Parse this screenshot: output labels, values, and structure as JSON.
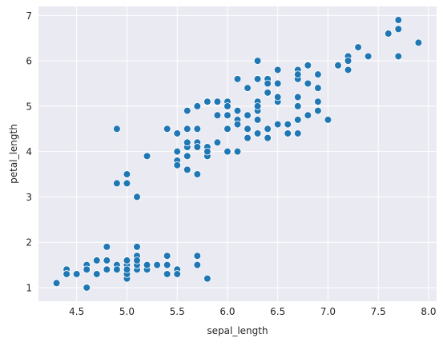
{
  "chart_data": {
    "type": "scatter",
    "title": "",
    "xlabel": "sepal_length",
    "ylabel": "petal_length",
    "xlim": [
      4.12,
      8.08
    ],
    "ylim": [
      0.7,
      7.2
    ],
    "xticks": [
      4.5,
      5.0,
      5.5,
      6.0,
      6.5,
      7.0,
      7.5,
      8.0
    ],
    "xtick_labels": [
      "4.5",
      "5.0",
      "5.5",
      "6.0",
      "6.5",
      "7.0",
      "7.5",
      "8.0"
    ],
    "yticks": [
      1,
      2,
      3,
      4,
      5,
      6,
      7
    ],
    "ytick_labels": [
      "1",
      "2",
      "3",
      "4",
      "5",
      "6",
      "7"
    ],
    "grid": true,
    "background_color": "#eaeaf2",
    "grid_color": "#ffffff",
    "marker_color": "#1f77b4",
    "points": [
      [
        5.1,
        1.4
      ],
      [
        4.9,
        1.4
      ],
      [
        4.7,
        1.3
      ],
      [
        4.6,
        1.5
      ],
      [
        5.0,
        1.4
      ],
      [
        5.4,
        1.7
      ],
      [
        4.6,
        1.4
      ],
      [
        5.0,
        1.5
      ],
      [
        4.4,
        1.4
      ],
      [
        4.9,
        1.5
      ],
      [
        5.4,
        1.5
      ],
      [
        4.8,
        1.6
      ],
      [
        4.8,
        1.4
      ],
      [
        4.3,
        1.1
      ],
      [
        5.8,
        1.2
      ],
      [
        5.7,
        1.5
      ],
      [
        5.4,
        1.3
      ],
      [
        5.1,
        1.4
      ],
      [
        5.7,
        1.7
      ],
      [
        5.1,
        1.5
      ],
      [
        5.4,
        1.7
      ],
      [
        5.1,
        1.5
      ],
      [
        4.6,
        1.0
      ],
      [
        5.1,
        1.7
      ],
      [
        4.8,
        1.9
      ],
      [
        5.0,
        1.6
      ],
      [
        5.0,
        1.6
      ],
      [
        5.2,
        1.5
      ],
      [
        5.2,
        1.4
      ],
      [
        4.7,
        1.6
      ],
      [
        4.8,
        1.6
      ],
      [
        5.4,
        1.5
      ],
      [
        5.2,
        1.5
      ],
      [
        5.5,
        1.4
      ],
      [
        4.9,
        1.5
      ],
      [
        5.0,
        1.2
      ],
      [
        5.5,
        1.3
      ],
      [
        4.9,
        1.4
      ],
      [
        4.4,
        1.3
      ],
      [
        5.1,
        1.5
      ],
      [
        5.0,
        1.3
      ],
      [
        4.5,
        1.3
      ],
      [
        4.4,
        1.3
      ],
      [
        5.0,
        1.6
      ],
      [
        5.1,
        1.9
      ],
      [
        4.8,
        1.4
      ],
      [
        5.1,
        1.6
      ],
      [
        4.6,
        1.4
      ],
      [
        5.3,
        1.5
      ],
      [
        5.0,
        1.4
      ],
      [
        7.0,
        4.7
      ],
      [
        6.4,
        4.5
      ],
      [
        6.9,
        4.9
      ],
      [
        5.5,
        4.0
      ],
      [
        6.5,
        4.6
      ],
      [
        5.7,
        4.5
      ],
      [
        6.3,
        4.7
      ],
      [
        4.9,
        3.3
      ],
      [
        6.6,
        4.6
      ],
      [
        5.2,
        3.9
      ],
      [
        5.0,
        3.5
      ],
      [
        5.9,
        4.2
      ],
      [
        6.0,
        4.0
      ],
      [
        6.1,
        4.7
      ],
      [
        5.6,
        3.6
      ],
      [
        6.7,
        4.4
      ],
      [
        5.6,
        4.5
      ],
      [
        5.8,
        4.1
      ],
      [
        6.2,
        4.5
      ],
      [
        5.6,
        3.9
      ],
      [
        5.9,
        4.8
      ],
      [
        6.1,
        4.0
      ],
      [
        6.3,
        4.9
      ],
      [
        6.1,
        4.7
      ],
      [
        6.4,
        4.3
      ],
      [
        6.6,
        4.4
      ],
      [
        6.8,
        4.8
      ],
      [
        6.7,
        5.0
      ],
      [
        6.0,
        4.5
      ],
      [
        5.7,
        3.5
      ],
      [
        5.5,
        3.8
      ],
      [
        5.5,
        3.7
      ],
      [
        5.8,
        3.9
      ],
      [
        6.0,
        5.1
      ],
      [
        5.4,
        4.5
      ],
      [
        6.0,
        4.5
      ],
      [
        6.7,
        4.7
      ],
      [
        6.3,
        4.4
      ],
      [
        5.6,
        4.1
      ],
      [
        5.5,
        4.0
      ],
      [
        5.5,
        4.4
      ],
      [
        6.1,
        4.6
      ],
      [
        5.8,
        4.0
      ],
      [
        5.0,
        3.3
      ],
      [
        5.6,
        4.2
      ],
      [
        5.7,
        4.2
      ],
      [
        5.7,
        4.2
      ],
      [
        6.2,
        4.3
      ],
      [
        5.1,
        3.0
      ],
      [
        5.7,
        4.1
      ],
      [
        6.3,
        6.0
      ],
      [
        5.8,
        5.1
      ],
      [
        7.1,
        5.9
      ],
      [
        6.3,
        5.6
      ],
      [
        6.5,
        5.8
      ],
      [
        7.6,
        6.6
      ],
      [
        4.9,
        4.5
      ],
      [
        7.3,
        6.3
      ],
      [
        6.7,
        5.8
      ],
      [
        7.2,
        6.1
      ],
      [
        6.5,
        5.1
      ],
      [
        6.4,
        5.3
      ],
      [
        6.8,
        5.5
      ],
      [
        5.7,
        5.0
      ],
      [
        5.8,
        5.1
      ],
      [
        6.4,
        5.3
      ],
      [
        6.5,
        5.5
      ],
      [
        7.7,
        6.7
      ],
      [
        7.7,
        6.9
      ],
      [
        6.0,
        5.0
      ],
      [
        6.9,
        5.7
      ],
      [
        5.6,
        4.9
      ],
      [
        7.7,
        6.7
      ],
      [
        6.3,
        4.9
      ],
      [
        6.7,
        5.7
      ],
      [
        7.2,
        6.0
      ],
      [
        6.2,
        4.8
      ],
      [
        6.1,
        4.9
      ],
      [
        6.4,
        5.6
      ],
      [
        7.2,
        5.8
      ],
      [
        7.4,
        6.1
      ],
      [
        7.9,
        6.4
      ],
      [
        6.4,
        5.6
      ],
      [
        6.3,
        5.1
      ],
      [
        6.1,
        5.6
      ],
      [
        7.7,
        6.1
      ],
      [
        6.3,
        5.6
      ],
      [
        6.4,
        5.5
      ],
      [
        6.0,
        4.8
      ],
      [
        6.9,
        5.4
      ],
      [
        6.7,
        5.6
      ],
      [
        6.9,
        5.1
      ],
      [
        5.8,
        5.1
      ],
      [
        6.8,
        5.9
      ],
      [
        6.7,
        5.7
      ],
      [
        6.7,
        5.2
      ],
      [
        6.3,
        5.0
      ],
      [
        6.5,
        5.2
      ],
      [
        6.2,
        5.4
      ],
      [
        5.9,
        5.1
      ]
    ]
  }
}
